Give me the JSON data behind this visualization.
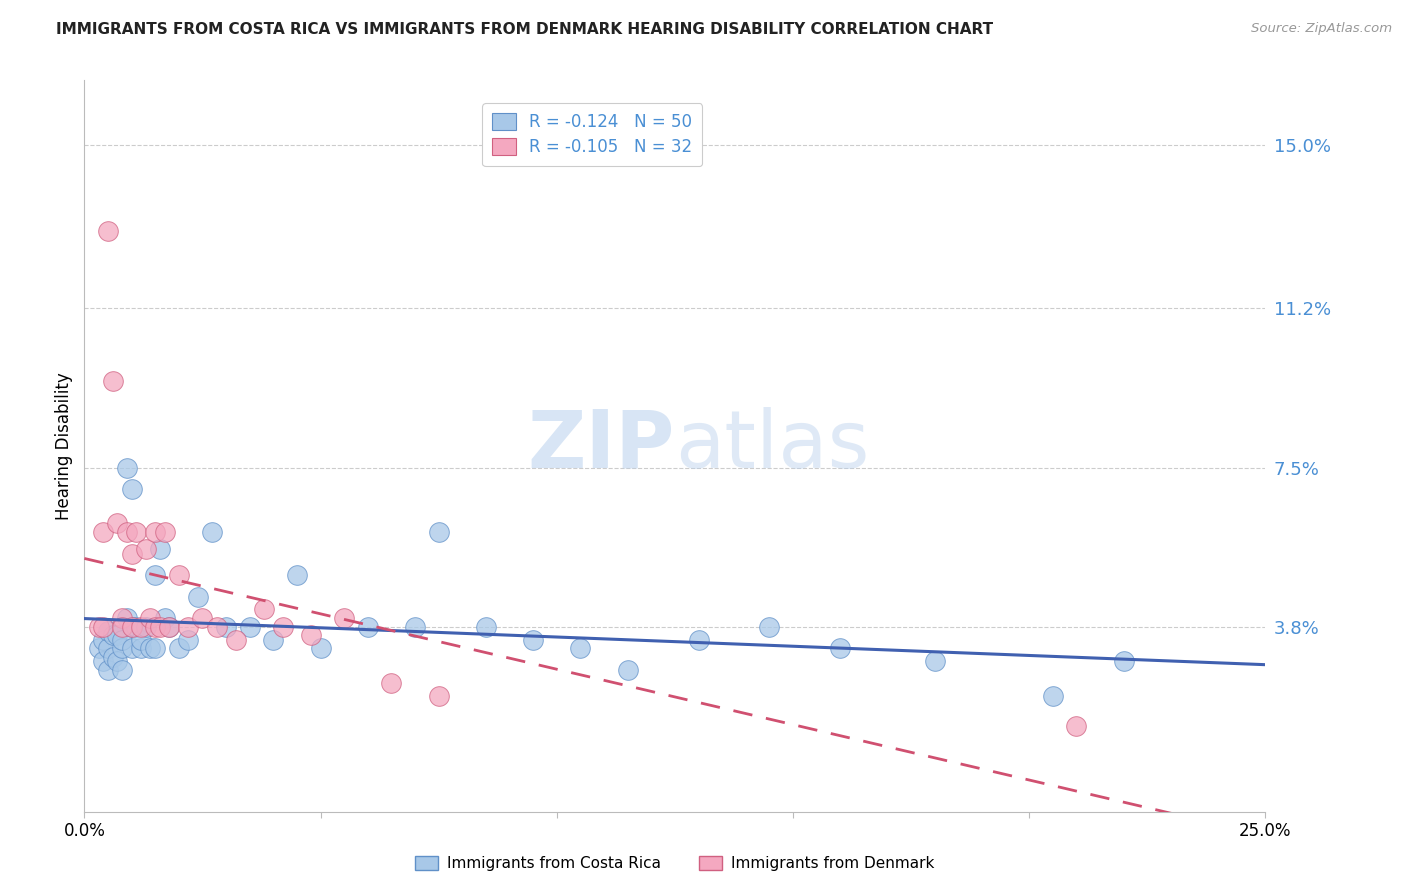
{
  "title": "IMMIGRANTS FROM COSTA RICA VS IMMIGRANTS FROM DENMARK HEARING DISABILITY CORRELATION CHART",
  "source": "Source: ZipAtlas.com",
  "ylabel": "Hearing Disability",
  "legend_label1": "Immigrants from Costa Rica",
  "legend_label2": "Immigrants from Denmark",
  "r1": -0.124,
  "n1": 50,
  "r2": -0.105,
  "n2": 32,
  "color1": "#a8c8e8",
  "color2": "#f4a8c0",
  "edge_color1": "#6090c8",
  "edge_color2": "#d06080",
  "line_color1": "#4060b0",
  "line_color2": "#d05070",
  "xlim": [
    0.0,
    0.25
  ],
  "ylim": [
    -0.005,
    0.165
  ],
  "yticks": [
    0.038,
    0.075,
    0.112,
    0.15
  ],
  "ytick_labels": [
    "3.8%",
    "7.5%",
    "11.2%",
    "15.0%"
  ],
  "watermark_zip": "ZIP",
  "watermark_atlas": "atlas",
  "scatter1_x": [
    0.003,
    0.004,
    0.004,
    0.005,
    0.005,
    0.005,
    0.006,
    0.006,
    0.007,
    0.007,
    0.008,
    0.008,
    0.008,
    0.009,
    0.009,
    0.01,
    0.01,
    0.01,
    0.011,
    0.012,
    0.012,
    0.013,
    0.014,
    0.015,
    0.015,
    0.016,
    0.017,
    0.018,
    0.02,
    0.022,
    0.024,
    0.027,
    0.03,
    0.035,
    0.04,
    0.045,
    0.05,
    0.06,
    0.07,
    0.075,
    0.085,
    0.095,
    0.105,
    0.115,
    0.13,
    0.145,
    0.16,
    0.18,
    0.205,
    0.22
  ],
  "scatter1_y": [
    0.033,
    0.03,
    0.035,
    0.033,
    0.028,
    0.037,
    0.036,
    0.031,
    0.03,
    0.036,
    0.033,
    0.028,
    0.035,
    0.075,
    0.04,
    0.07,
    0.038,
    0.033,
    0.038,
    0.033,
    0.035,
    0.038,
    0.033,
    0.05,
    0.033,
    0.056,
    0.04,
    0.038,
    0.033,
    0.035,
    0.045,
    0.06,
    0.038,
    0.038,
    0.035,
    0.05,
    0.033,
    0.038,
    0.038,
    0.06,
    0.038,
    0.035,
    0.033,
    0.028,
    0.035,
    0.038,
    0.033,
    0.03,
    0.022,
    0.03
  ],
  "scatter2_x": [
    0.003,
    0.004,
    0.004,
    0.005,
    0.006,
    0.007,
    0.008,
    0.008,
    0.009,
    0.01,
    0.01,
    0.011,
    0.012,
    0.013,
    0.014,
    0.015,
    0.015,
    0.016,
    0.017,
    0.018,
    0.02,
    0.022,
    0.025,
    0.028,
    0.032,
    0.038,
    0.042,
    0.048,
    0.055,
    0.065,
    0.075,
    0.21
  ],
  "scatter2_y": [
    0.038,
    0.038,
    0.06,
    0.13,
    0.095,
    0.062,
    0.04,
    0.038,
    0.06,
    0.055,
    0.038,
    0.06,
    0.038,
    0.056,
    0.04,
    0.038,
    0.06,
    0.038,
    0.06,
    0.038,
    0.05,
    0.038,
    0.04,
    0.038,
    0.035,
    0.042,
    0.038,
    0.036,
    0.04,
    0.025,
    0.022,
    0.015
  ]
}
